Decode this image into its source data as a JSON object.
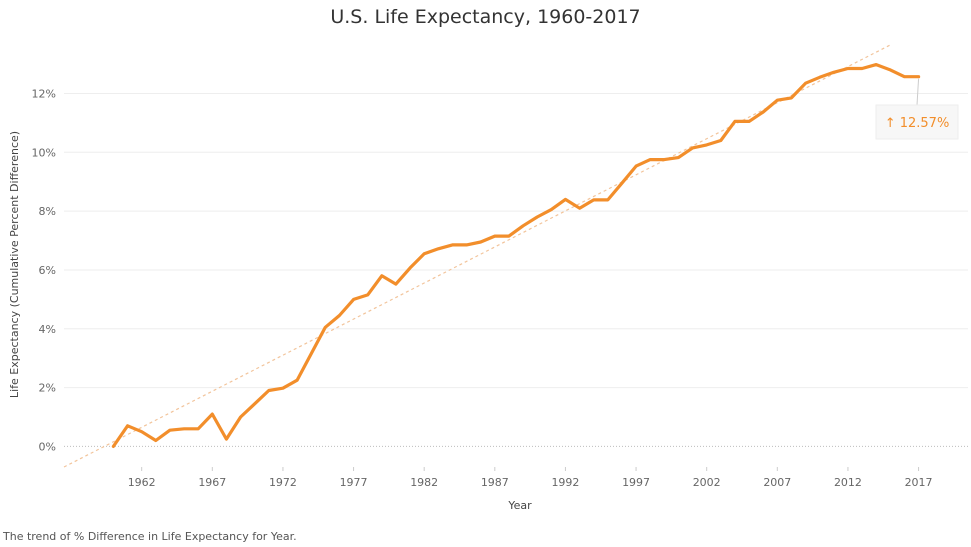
{
  "footnote": "The trend of % Difference in Life Expectancy for Year.",
  "chart_data": {
    "type": "line",
    "title": "U.S. Life Expectancy, 1960-2017",
    "xlabel": "Year",
    "ylabel": "Life Expectancy (Cumulative Percent Difference)",
    "x_tick_labels": [
      "1962",
      "1967",
      "1972",
      "1977",
      "1982",
      "1987",
      "1992",
      "1997",
      "2002",
      "2007",
      "2012",
      "2017"
    ],
    "y_tick_labels": [
      "0%",
      "2%",
      "4%",
      "6%",
      "8%",
      "10%",
      "12%"
    ],
    "xlim": [
      1956.5,
      2020.5
    ],
    "ylim": [
      -0.7,
      13.75
    ],
    "grid": true,
    "line_color": "#f28e2b",
    "trend_color": "#f2c49b",
    "annotation": {
      "text": "↑ 12.57%",
      "x": 2017,
      "y": 12.57,
      "color": "#f28e2b"
    },
    "trend_line": {
      "x": [
        1956.5,
        2015
      ],
      "y": [
        -0.7,
        13.65
      ]
    },
    "series": [
      {
        "x": [
          1960,
          1961,
          1962,
          1963,
          1964,
          1965,
          1966,
          1967,
          1968,
          1969,
          1970,
          1971,
          1972,
          1973,
          1974,
          1975,
          1976,
          1977,
          1978,
          1979,
          1980,
          1981,
          1982,
          1983,
          1984,
          1985,
          1986,
          1987,
          1988,
          1989,
          1990,
          1991,
          1992,
          1993,
          1994,
          1995,
          1996,
          1997,
          1998,
          1999,
          2000,
          2001,
          2002,
          2003,
          2004,
          2005,
          2006,
          2007,
          2008,
          2009,
          2010,
          2011,
          2012,
          2013,
          2014,
          2015,
          2016,
          2017
        ],
        "values": [
          0.0,
          0.7,
          0.5,
          0.2,
          0.55,
          0.6,
          0.6,
          1.1,
          0.25,
          1.0,
          1.45,
          1.9,
          1.98,
          2.25,
          3.15,
          4.05,
          4.45,
          5.0,
          5.15,
          5.8,
          5.52,
          6.07,
          6.55,
          6.72,
          6.85,
          6.85,
          6.95,
          7.15,
          7.15,
          7.5,
          7.8,
          8.05,
          8.4,
          8.1,
          8.38,
          8.38,
          8.95,
          9.53,
          9.75,
          9.75,
          9.82,
          10.15,
          10.25,
          10.4,
          11.05,
          11.05,
          11.37,
          11.77,
          11.85,
          12.35,
          12.55,
          12.72,
          12.85,
          12.85,
          12.98,
          12.8,
          12.57,
          12.57
        ]
      }
    ]
  }
}
